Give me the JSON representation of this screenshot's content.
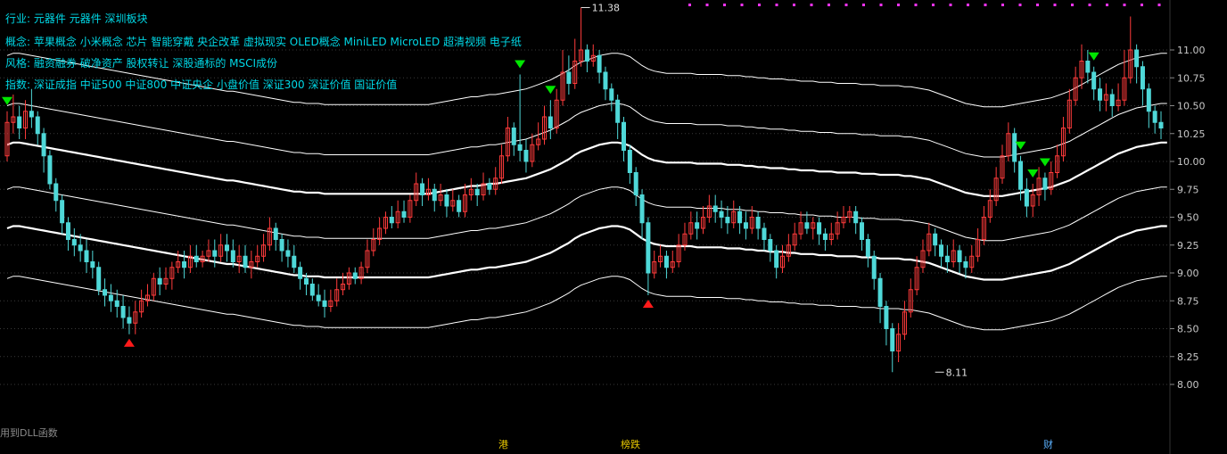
{
  "info": {
    "industry_label": "行业:",
    "industry_value": "元器件 元器件 深圳板块",
    "concept_label": "概念:",
    "concept_value": "苹果概念 小米概念 芯片 智能穿戴 央企改革 虚拟现实 OLED概念 MiniLED MicroLED 超清视频 电子纸",
    "style_label": "风格:",
    "style_value": "融资融券 破净资产 股权转让 深股通标的 MSCI成份",
    "index_label": "指数:",
    "index_value": "深证成指 中证500 中证800 中证央企 小盘价值 深证300 深证价值 国证价值"
  },
  "footer": {
    "dll_text": "用到DLL函数",
    "events": [
      "港",
      "榜跌",
      "财"
    ]
  },
  "colors": {
    "background": "#000000",
    "up": "#ff3b3b",
    "down": "#4fd8d8",
    "band": "#ffffff",
    "sell_marker": "#00e600",
    "buy_marker": "#ff1a1a",
    "info_text": "#00d8e6",
    "grid": "#3a3a3a",
    "top_dots": "#ff33ff"
  },
  "chart_data": {
    "type": "candlestick",
    "title": "",
    "ylabel": "",
    "ylim": [
      7.75,
      11.4
    ],
    "yticks": [
      "11.00",
      "10.75",
      "10.50",
      "10.25",
      "10.00",
      "9.75",
      "9.50",
      "9.25",
      "9.00",
      "8.75",
      "8.50",
      "8.25",
      "8.00"
    ],
    "annotations": [
      {
        "label": "11.38",
        "bar": 94,
        "value": 11.38,
        "kind": "high"
      },
      {
        "label": "8.11",
        "bar": 152,
        "value": 8.11,
        "kind": "low"
      }
    ],
    "sell_signals": [
      0,
      84,
      89,
      166,
      168,
      170,
      178
    ],
    "buy_signals": [
      20,
      105
    ],
    "bands": {
      "offsets": [
        1.0,
        0.55,
        0.2,
        -0.2,
        -0.55,
        -1.0
      ],
      "widths": [
        1,
        1,
        2.2,
        1,
        2.2,
        1
      ]
    },
    "mid_line": [
      9.95,
      9.97,
      9.97,
      9.96,
      9.95,
      9.94,
      9.93,
      9.92,
      9.91,
      9.9,
      9.89,
      9.88,
      9.87,
      9.86,
      9.85,
      9.84,
      9.83,
      9.82,
      9.81,
      9.8,
      9.79,
      9.78,
      9.77,
      9.76,
      9.75,
      9.74,
      9.73,
      9.72,
      9.71,
      9.7,
      9.69,
      9.68,
      9.67,
      9.66,
      9.65,
      9.64,
      9.63,
      9.63,
      9.62,
      9.61,
      9.6,
      9.59,
      9.58,
      9.57,
      9.56,
      9.55,
      9.54,
      9.53,
      9.53,
      9.52,
      9.52,
      9.52,
      9.51,
      9.51,
      9.51,
      9.51,
      9.51,
      9.51,
      9.51,
      9.51,
      9.51,
      9.51,
      9.51,
      9.51,
      9.51,
      9.51,
      9.51,
      9.51,
      9.51,
      9.51,
      9.52,
      9.53,
      9.54,
      9.55,
      9.56,
      9.57,
      9.58,
      9.58,
      9.59,
      9.6,
      9.6,
      9.61,
      9.62,
      9.63,
      9.64,
      9.65,
      9.67,
      9.69,
      9.71,
      9.73,
      9.76,
      9.79,
      9.82,
      9.86,
      9.89,
      9.91,
      9.93,
      9.95,
      9.96,
      9.97,
      9.97,
      9.96,
      9.94,
      9.9,
      9.86,
      9.83,
      9.81,
      9.8,
      9.79,
      9.79,
      9.79,
      9.79,
      9.79,
      9.78,
      9.78,
      9.78,
      9.78,
      9.78,
      9.77,
      9.77,
      9.77,
      9.76,
      9.76,
      9.75,
      9.75,
      9.74,
      9.74,
      9.74,
      9.73,
      9.73,
      9.72,
      9.72,
      9.72,
      9.71,
      9.71,
      9.71,
      9.7,
      9.7,
      9.7,
      9.7,
      9.69,
      9.69,
      9.69,
      9.68,
      9.68,
      9.68,
      9.68,
      9.67,
      9.67,
      9.66,
      9.65,
      9.64,
      9.62,
      9.6,
      9.58,
      9.56,
      9.54,
      9.52,
      9.51,
      9.5,
      9.49,
      9.49,
      9.49,
      9.49,
      9.5,
      9.51,
      9.52,
      9.53,
      9.54,
      9.55,
      9.56,
      9.57,
      9.59,
      9.61,
      9.63,
      9.66,
      9.69,
      9.72,
      9.75,
      9.78,
      9.81,
      9.84,
      9.87,
      9.89,
      9.91,
      9.93,
      9.94,
      9.95,
      9.96,
      9.97,
      9.97
    ],
    "candles": [
      [
        10.05,
        10.35,
        10.45,
        10.0
      ],
      [
        10.35,
        10.4,
        10.6,
        10.25
      ],
      [
        10.4,
        10.3,
        10.5,
        10.2
      ],
      [
        10.3,
        10.45,
        10.55,
        10.2
      ],
      [
        10.45,
        10.4,
        10.65,
        10.3
      ],
      [
        10.4,
        10.25,
        10.45,
        10.15
      ],
      [
        10.25,
        10.05,
        10.3,
        9.9
      ],
      [
        10.05,
        9.8,
        10.1,
        9.75
      ],
      [
        9.8,
        9.65,
        9.85,
        9.55
      ],
      [
        9.65,
        9.45,
        9.7,
        9.35
      ],
      [
        9.45,
        9.3,
        9.5,
        9.2
      ],
      [
        9.3,
        9.25,
        9.4,
        9.15
      ],
      [
        9.25,
        9.2,
        9.35,
        9.1
      ],
      [
        9.2,
        9.1,
        9.3,
        9.0
      ],
      [
        9.1,
        9.05,
        9.2,
        8.95
      ],
      [
        9.05,
        8.85,
        9.1,
        8.8
      ],
      [
        8.85,
        8.8,
        8.95,
        8.7
      ],
      [
        8.8,
        8.75,
        8.9,
        8.65
      ],
      [
        8.75,
        8.7,
        8.85,
        8.6
      ],
      [
        8.7,
        8.6,
        8.8,
        8.5
      ],
      [
        8.6,
        8.55,
        8.7,
        8.45
      ],
      [
        8.55,
        8.65,
        8.75,
        8.45
      ],
      [
        8.65,
        8.75,
        8.85,
        8.6
      ],
      [
        8.75,
        8.8,
        8.9,
        8.7
      ],
      [
        8.8,
        8.95,
        9.0,
        8.75
      ],
      [
        8.95,
        8.9,
        9.05,
        8.8
      ],
      [
        8.9,
        8.95,
        9.05,
        8.85
      ],
      [
        8.95,
        9.05,
        9.1,
        8.85
      ],
      [
        9.05,
        9.1,
        9.2,
        9.0
      ],
      [
        9.1,
        9.05,
        9.2,
        8.95
      ],
      [
        9.05,
        9.15,
        9.25,
        9.0
      ],
      [
        9.15,
        9.1,
        9.25,
        9.05
      ],
      [
        9.1,
        9.15,
        9.2,
        9.05
      ],
      [
        9.15,
        9.2,
        9.3,
        9.1
      ],
      [
        9.2,
        9.15,
        9.3,
        9.05
      ],
      [
        9.15,
        9.25,
        9.35,
        9.1
      ],
      [
        9.25,
        9.2,
        9.35,
        9.1
      ],
      [
        9.2,
        9.1,
        9.3,
        9.05
      ],
      [
        9.1,
        9.15,
        9.25,
        9.0
      ],
      [
        9.15,
        9.05,
        9.25,
        9.0
      ],
      [
        9.05,
        9.1,
        9.2,
        8.95
      ],
      [
        9.1,
        9.15,
        9.25,
        9.05
      ],
      [
        9.15,
        9.25,
        9.35,
        9.1
      ],
      [
        9.25,
        9.4,
        9.5,
        9.2
      ],
      [
        9.4,
        9.3,
        9.45,
        9.2
      ],
      [
        9.3,
        9.2,
        9.35,
        9.1
      ],
      [
        9.2,
        9.15,
        9.3,
        9.05
      ],
      [
        9.15,
        9.05,
        9.25,
        9.0
      ],
      [
        9.05,
        8.95,
        9.1,
        8.85
      ],
      [
        8.95,
        8.9,
        9.0,
        8.8
      ],
      [
        8.9,
        8.8,
        8.95,
        8.75
      ],
      [
        8.8,
        8.75,
        8.9,
        8.7
      ],
      [
        8.75,
        8.7,
        8.85,
        8.6
      ],
      [
        8.7,
        8.75,
        8.85,
        8.65
      ],
      [
        8.75,
        8.85,
        8.95,
        8.7
      ],
      [
        8.85,
        8.9,
        9.0,
        8.8
      ],
      [
        8.9,
        9.0,
        9.05,
        8.85
      ],
      [
        9.0,
        8.95,
        9.05,
        8.9
      ],
      [
        8.95,
        9.05,
        9.1,
        8.9
      ],
      [
        9.05,
        9.2,
        9.3,
        9.0
      ],
      [
        9.2,
        9.3,
        9.4,
        9.15
      ],
      [
        9.3,
        9.4,
        9.5,
        9.25
      ],
      [
        9.4,
        9.5,
        9.55,
        9.35
      ],
      [
        9.5,
        9.45,
        9.6,
        9.4
      ],
      [
        9.45,
        9.55,
        9.65,
        9.4
      ],
      [
        9.55,
        9.5,
        9.65,
        9.45
      ],
      [
        9.5,
        9.65,
        9.7,
        9.45
      ],
      [
        9.65,
        9.8,
        9.9,
        9.6
      ],
      [
        9.8,
        9.7,
        9.85,
        9.6
      ],
      [
        9.7,
        9.75,
        9.85,
        9.65
      ],
      [
        9.75,
        9.65,
        9.8,
        9.55
      ],
      [
        9.65,
        9.7,
        9.8,
        9.6
      ],
      [
        9.7,
        9.6,
        9.75,
        9.5
      ],
      [
        9.6,
        9.65,
        9.75,
        9.55
      ],
      [
        9.65,
        9.55,
        9.7,
        9.5
      ],
      [
        9.55,
        9.7,
        9.8,
        9.5
      ],
      [
        9.7,
        9.75,
        9.85,
        9.65
      ],
      [
        9.75,
        9.7,
        9.8,
        9.6
      ],
      [
        9.7,
        9.8,
        9.9,
        9.65
      ],
      [
        9.8,
        9.75,
        9.85,
        9.7
      ],
      [
        9.75,
        9.85,
        9.95,
        9.7
      ],
      [
        9.85,
        10.05,
        10.15,
        9.8
      ],
      [
        10.05,
        10.3,
        10.4,
        10.0
      ],
      [
        10.3,
        10.15,
        10.35,
        10.05
      ],
      [
        10.15,
        10.1,
        10.78,
        10.0
      ],
      [
        10.1,
        10.0,
        10.2,
        9.9
      ],
      [
        10.0,
        10.15,
        10.25,
        9.95
      ],
      [
        10.15,
        10.2,
        10.35,
        10.1
      ],
      [
        10.2,
        10.4,
        10.5,
        10.15
      ],
      [
        10.4,
        10.3,
        10.55,
        10.2
      ],
      [
        10.3,
        10.55,
        10.65,
        10.25
      ],
      [
        10.55,
        10.8,
        11.0,
        10.5
      ],
      [
        10.8,
        10.7,
        10.95,
        10.6
      ],
      [
        10.7,
        10.9,
        11.1,
        10.65
      ],
      [
        10.9,
        11.0,
        11.38,
        10.85
      ],
      [
        11.0,
        10.9,
        11.05,
        10.8
      ],
      [
        10.9,
        10.95,
        11.05,
        10.85
      ],
      [
        10.95,
        10.8,
        11.0,
        10.7
      ],
      [
        10.8,
        10.65,
        10.85,
        10.55
      ],
      [
        10.65,
        10.55,
        10.7,
        10.45
      ],
      [
        10.55,
        10.35,
        10.6,
        10.2
      ],
      [
        10.35,
        10.1,
        10.4,
        10.0
      ],
      [
        10.1,
        9.9,
        10.15,
        9.8
      ],
      [
        9.9,
        9.7,
        9.95,
        9.6
      ],
      [
        9.7,
        9.45,
        9.75,
        9.3
      ],
      [
        9.45,
        9.0,
        9.5,
        8.8
      ],
      [
        9.0,
        9.1,
        9.2,
        8.95
      ],
      [
        9.1,
        9.15,
        9.25,
        9.05
      ],
      [
        9.15,
        9.05,
        9.2,
        8.95
      ],
      [
        9.05,
        9.1,
        9.2,
        9.0
      ],
      [
        9.1,
        9.25,
        9.35,
        9.05
      ],
      [
        9.25,
        9.35,
        9.45,
        9.2
      ],
      [
        9.35,
        9.45,
        9.55,
        9.3
      ],
      [
        9.45,
        9.4,
        9.55,
        9.3
      ],
      [
        9.4,
        9.5,
        9.6,
        9.35
      ],
      [
        9.5,
        9.6,
        9.7,
        9.45
      ],
      [
        9.6,
        9.55,
        9.7,
        9.45
      ],
      [
        9.55,
        9.5,
        9.65,
        9.4
      ],
      [
        9.5,
        9.45,
        9.6,
        9.35
      ],
      [
        9.45,
        9.55,
        9.65,
        9.4
      ],
      [
        9.55,
        9.45,
        9.6,
        9.35
      ],
      [
        9.45,
        9.4,
        9.55,
        9.3
      ],
      [
        9.4,
        9.5,
        9.6,
        9.35
      ],
      [
        9.5,
        9.4,
        9.55,
        9.3
      ],
      [
        9.4,
        9.3,
        9.45,
        9.2
      ],
      [
        9.3,
        9.2,
        9.35,
        9.1
      ],
      [
        9.2,
        9.05,
        9.25,
        8.95
      ],
      [
        9.05,
        9.15,
        9.25,
        9.0
      ],
      [
        9.15,
        9.25,
        9.35,
        9.1
      ],
      [
        9.25,
        9.35,
        9.45,
        9.2
      ],
      [
        9.35,
        9.45,
        9.55,
        9.3
      ],
      [
        9.45,
        9.4,
        9.55,
        9.35
      ],
      [
        9.4,
        9.45,
        9.5,
        9.3
      ],
      [
        9.45,
        9.35,
        9.5,
        9.25
      ],
      [
        9.35,
        9.3,
        9.4,
        9.2
      ],
      [
        9.3,
        9.35,
        9.45,
        9.25
      ],
      [
        9.35,
        9.45,
        9.55,
        9.3
      ],
      [
        9.45,
        9.5,
        9.6,
        9.4
      ],
      [
        9.5,
        9.55,
        9.6,
        9.45
      ],
      [
        9.55,
        9.45,
        9.6,
        9.35
      ],
      [
        9.45,
        9.3,
        9.5,
        9.2
      ],
      [
        9.3,
        9.15,
        9.35,
        9.05
      ],
      [
        9.15,
        8.95,
        9.2,
        8.85
      ],
      [
        8.95,
        8.7,
        9.0,
        8.55
      ],
      [
        8.7,
        8.5,
        8.75,
        8.35
      ],
      [
        8.5,
        8.3,
        8.55,
        8.11
      ],
      [
        8.3,
        8.45,
        8.55,
        8.2
      ],
      [
        8.45,
        8.65,
        8.75,
        8.4
      ],
      [
        8.65,
        8.85,
        8.95,
        8.6
      ],
      [
        8.85,
        9.05,
        9.15,
        8.8
      ],
      [
        9.05,
        9.2,
        9.3,
        9.0
      ],
      [
        9.2,
        9.35,
        9.45,
        9.15
      ],
      [
        9.35,
        9.25,
        9.4,
        9.15
      ],
      [
        9.25,
        9.15,
        9.3,
        9.05
      ],
      [
        9.15,
        9.1,
        9.25,
        9.0
      ],
      [
        9.1,
        9.2,
        9.3,
        9.05
      ],
      [
        9.2,
        9.1,
        9.25,
        9.0
      ],
      [
        9.1,
        9.05,
        9.15,
        8.95
      ],
      [
        9.05,
        9.15,
        9.25,
        9.0
      ],
      [
        9.15,
        9.3,
        9.4,
        9.1
      ],
      [
        9.3,
        9.5,
        9.6,
        9.25
      ],
      [
        9.5,
        9.65,
        9.75,
        9.45
      ],
      [
        9.65,
        9.85,
        9.95,
        9.6
      ],
      [
        9.85,
        10.05,
        10.15,
        9.8
      ],
      [
        10.05,
        10.25,
        10.35,
        10.0
      ],
      [
        10.25,
        10.0,
        10.3,
        9.9
      ],
      [
        10.0,
        9.75,
        10.05,
        9.65
      ],
      [
        9.75,
        9.6,
        9.85,
        9.5
      ],
      [
        9.6,
        9.7,
        9.8,
        9.5
      ],
      [
        9.7,
        9.85,
        9.95,
        9.6
      ],
      [
        9.85,
        9.75,
        9.9,
        9.65
      ],
      [
        9.75,
        9.9,
        10.0,
        9.7
      ],
      [
        9.9,
        10.05,
        10.15,
        9.85
      ],
      [
        10.05,
        10.3,
        10.4,
        10.0
      ],
      [
        10.3,
        10.55,
        10.65,
        10.25
      ],
      [
        10.55,
        10.75,
        10.85,
        10.5
      ],
      [
        10.75,
        10.9,
        11.05,
        10.65
      ],
      [
        10.9,
        10.8,
        11.0,
        10.7
      ],
      [
        10.8,
        10.65,
        10.85,
        10.55
      ],
      [
        10.65,
        10.55,
        10.75,
        10.45
      ],
      [
        10.55,
        10.6,
        10.7,
        10.45
      ],
      [
        10.6,
        10.5,
        10.65,
        10.4
      ],
      [
        10.5,
        10.55,
        10.7,
        10.45
      ],
      [
        10.55,
        10.75,
        11.0,
        10.5
      ],
      [
        10.75,
        11.0,
        11.3,
        10.7
      ],
      [
        11.0,
        10.85,
        11.05,
        10.7
      ],
      [
        10.85,
        10.65,
        10.9,
        10.5
      ],
      [
        10.65,
        10.45,
        10.7,
        10.3
      ],
      [
        10.45,
        10.35,
        10.5,
        10.25
      ],
      [
        10.35,
        10.3,
        10.45,
        10.2
      ]
    ]
  }
}
